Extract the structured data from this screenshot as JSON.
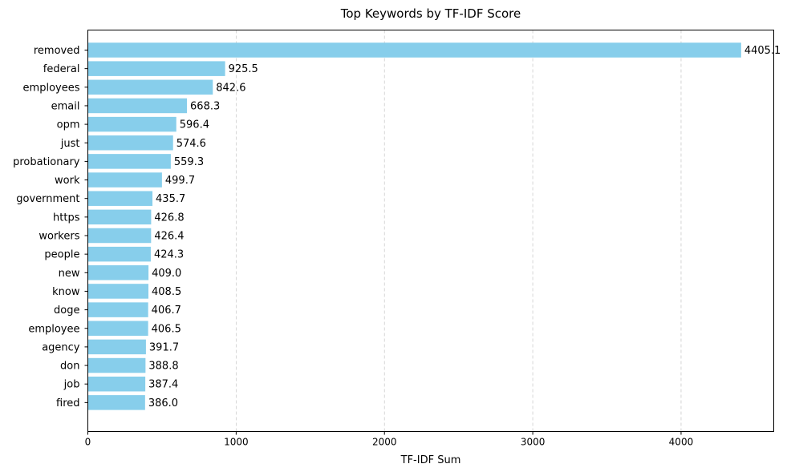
{
  "chart_data": {
    "type": "bar",
    "orientation": "horizontal",
    "title": "Top Keywords by TF-IDF Score",
    "xlabel": "TF-IDF Sum",
    "ylabel": "",
    "xlim": [
      0,
      4625
    ],
    "xticks": [
      0,
      1000,
      2000,
      3000,
      4000
    ],
    "xtick_labels": [
      "0",
      "1000",
      "2000",
      "3000",
      "4000"
    ],
    "grid": "x-dashed",
    "bar_color": "#87CEEB",
    "grid_color": "#cccccc",
    "categories": [
      "removed",
      "federal",
      "employees",
      "email",
      "opm",
      "just",
      "probationary",
      "work",
      "government",
      "https",
      "workers",
      "people",
      "new",
      "know",
      "doge",
      "employee",
      "agency",
      "don",
      "job",
      "fired"
    ],
    "values": [
      4405.1,
      925.5,
      842.6,
      668.3,
      596.4,
      574.6,
      559.3,
      499.7,
      435.7,
      426.8,
      426.4,
      424.3,
      409.0,
      408.5,
      406.7,
      406.5,
      391.7,
      388.8,
      387.4,
      386.0
    ],
    "value_labels": [
      "4405.1",
      "925.5",
      "842.6",
      "668.3",
      "596.4",
      "574.6",
      "559.3",
      "499.7",
      "435.7",
      "426.8",
      "426.4",
      "424.3",
      "409.0",
      "408.5",
      "406.7",
      "406.5",
      "391.7",
      "388.8",
      "387.4",
      "386.0"
    ]
  }
}
